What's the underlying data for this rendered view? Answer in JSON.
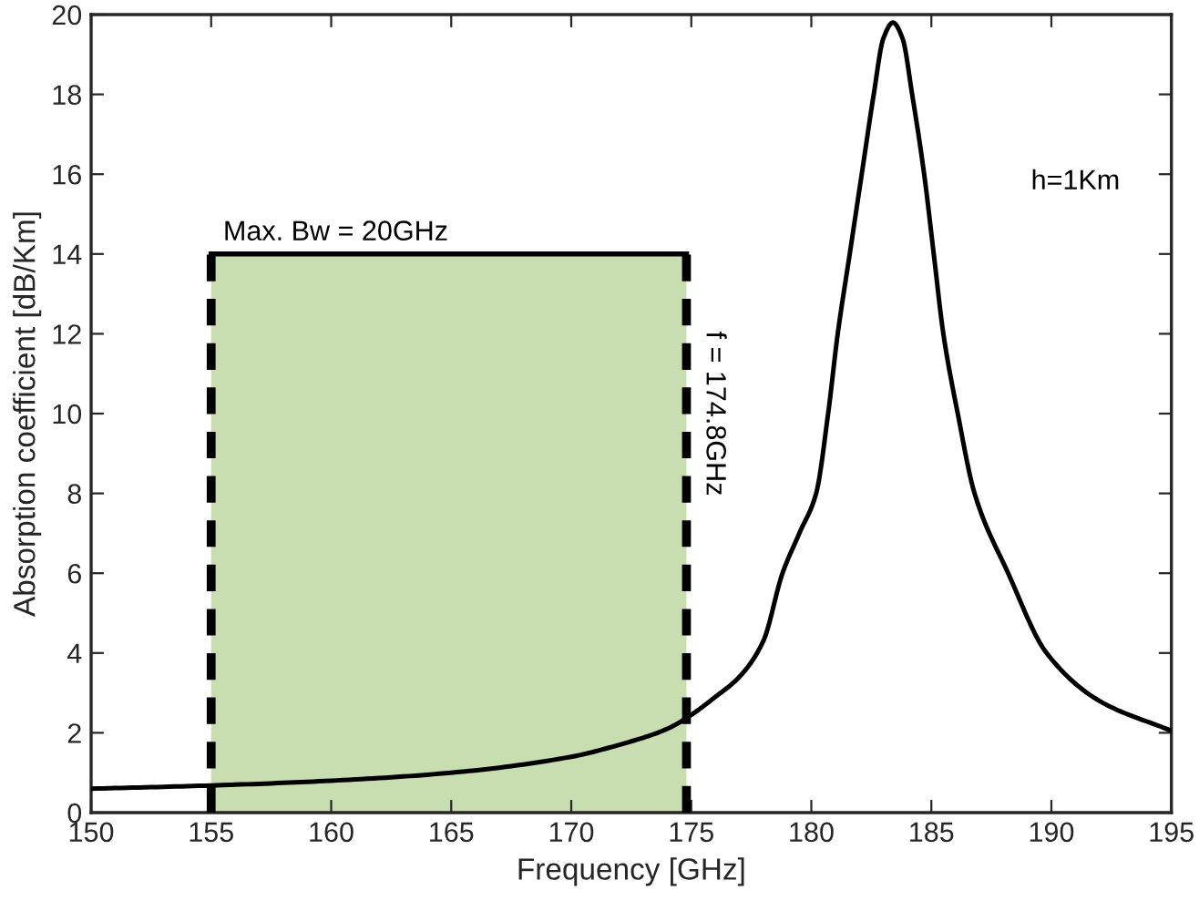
{
  "chart_data": {
    "type": "line",
    "xlabel": "Frequency [GHz]",
    "ylabel": "Absorption coefficient [dB/Km]",
    "xlim": [
      150,
      195
    ],
    "ylim": [
      0,
      20
    ],
    "xticks": [
      150,
      155,
      160,
      165,
      170,
      175,
      180,
      185,
      190,
      195
    ],
    "yticks": [
      0,
      2,
      4,
      6,
      8,
      10,
      12,
      14,
      16,
      18,
      20
    ],
    "grid": false,
    "legend": false,
    "series": [
      {
        "type": "area",
        "color": "#c8ddb0",
        "x": [
          155,
          174.8
        ],
        "values": [
          14,
          14
        ]
      },
      {
        "color": "#000000",
        "x": [
          150,
          155,
          160,
          165,
          170,
          172,
          174,
          175,
          176,
          177,
          178,
          178.8,
          179.5,
          180.2,
          180.7,
          181.1,
          181.6,
          182.1,
          182.6,
          183,
          183.4,
          183.8,
          184.2,
          184.7,
          185.1,
          185.5,
          186.1,
          186.8,
          188.2,
          189.8,
          192,
          195
        ],
        "values": [
          0.6,
          0.68,
          0.8,
          1.0,
          1.4,
          1.7,
          2.1,
          2.45,
          2.9,
          3.4,
          4.3,
          6,
          7,
          8,
          10,
          12,
          14,
          16,
          18,
          19.4,
          19.8,
          19.4,
          18,
          16,
          14,
          12,
          10,
          8,
          6,
          4,
          2.8,
          2.05
        ]
      }
    ],
    "ref_lines": [
      {
        "axis": "x",
        "value": 155,
        "label": null,
        "color": "#000000",
        "line_style": "dashed"
      },
      {
        "axis": "x",
        "value": 174.8,
        "label": "f = 174.8GHz",
        "color": "#000000",
        "line_style": "dashed"
      }
    ],
    "annotations": [
      {
        "text": "Max. Bw = 20GHz",
        "x": 155,
        "y": 14
      },
      "h=1Km"
    ]
  }
}
